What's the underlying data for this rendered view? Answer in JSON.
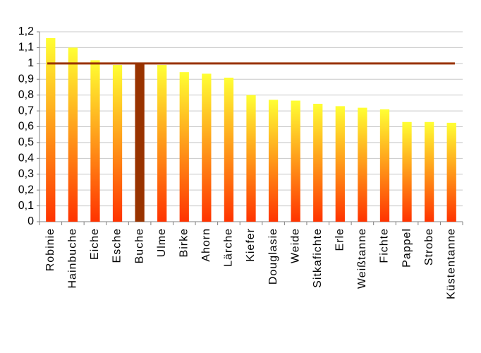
{
  "chart_data": {
    "type": "bar",
    "categories": [
      "Robinie",
      "Hainbuche",
      "Eiche",
      "Esche",
      "Buche",
      "Ulme",
      "Birke",
      "Ahorn",
      "Lärche",
      "Kiefer",
      "Douglasie",
      "Weide",
      "Sitkafichte",
      "Erle",
      "Weißtanne",
      "Fichte",
      "Pappel",
      "Strobe",
      "Küstentanne"
    ],
    "values": [
      1.16,
      1.1,
      1.02,
      0.99,
      1.0,
      0.99,
      0.945,
      0.935,
      0.91,
      0.8,
      0.77,
      0.765,
      0.745,
      0.73,
      0.72,
      0.71,
      0.63,
      0.63,
      0.625
    ],
    "colors": [
      [
        "#ffff33",
        "#ff3300"
      ],
      [
        "#ffff33",
        "#ff3300"
      ],
      [
        "#ffff33",
        "#ff3300"
      ],
      [
        "#ffff33",
        "#ff3300"
      ],
      [
        "#993300",
        "#993300"
      ],
      [
        "#ffff33",
        "#ff3300"
      ],
      [
        "#ffff33",
        "#ff3300"
      ],
      [
        "#ffff33",
        "#ff3300"
      ],
      [
        "#ffff33",
        "#ff3300"
      ],
      [
        "#ffff33",
        "#ff3300"
      ],
      [
        "#ffff33",
        "#ff3300"
      ],
      [
        "#ffff33",
        "#ff3300"
      ],
      [
        "#ffff33",
        "#ff3300"
      ],
      [
        "#ffff33",
        "#ff3300"
      ],
      [
        "#ffff33",
        "#ff3300"
      ],
      [
        "#ffff33",
        "#ff3300"
      ],
      [
        "#ffff33",
        "#ff3300"
      ],
      [
        "#ffff33",
        "#ff3300"
      ],
      [
        "#ffff33",
        "#ff3300"
      ]
    ],
    "reference_line": {
      "value": 1,
      "color": "#993300"
    },
    "ylim": [
      0,
      1.2
    ],
    "yticks": [
      0,
      {
        "value": 0.1,
        "label": "0,1"
      },
      {
        "value": 0.2,
        "label": "0,2"
      },
      {
        "value": 0.3,
        "label": "0,3"
      },
      {
        "value": 0.4,
        "label": "0,4"
      },
      {
        "value": 0.5,
        "label": "0,5"
      },
      {
        "value": 0.6,
        "label": "0,6"
      },
      {
        "value": 0.7,
        "label": "0,7"
      },
      {
        "value": 0.8,
        "label": "0,8"
      },
      {
        "value": 0.9,
        "label": "0,9"
      },
      1,
      {
        "value": 1.1,
        "label": "1,1"
      },
      {
        "value": 1.2,
        "label": "1,2"
      }
    ],
    "grid": true
  }
}
